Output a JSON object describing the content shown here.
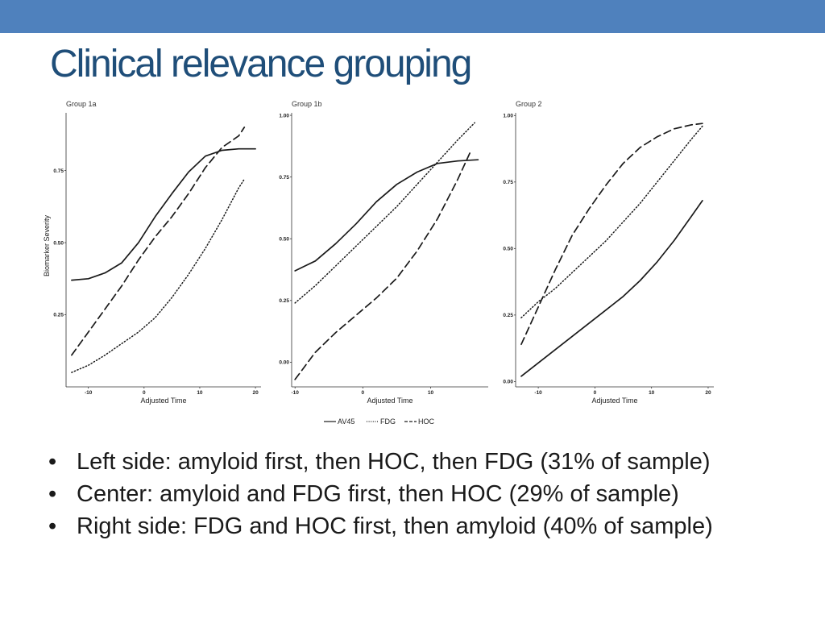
{
  "slide": {
    "title": "Clinical relevance grouping",
    "accent_color": "#4f81bd",
    "title_color": "#1f4e79"
  },
  "legend": [
    {
      "label": "AV45",
      "style": "solid"
    },
    {
      "label": "FDG",
      "style": "dotted"
    },
    {
      "label": "HOC",
      "style": "dashed"
    }
  ],
  "chart_data": [
    {
      "type": "line",
      "title": "Group 1a",
      "xlabel": "Adjusted Time",
      "ylabel": "Biomarker Severity",
      "xlim": [
        -14,
        21
      ],
      "ylim": [
        0,
        0.95
      ],
      "xticks": [
        -10,
        0,
        10,
        20
      ],
      "yticks": [
        0.25,
        0.5,
        0.75
      ],
      "grid": false,
      "series": [
        {
          "name": "AV45",
          "style": "solid",
          "x": [
            -13,
            -10,
            -7,
            -4,
            -1,
            2,
            5,
            8,
            11,
            14,
            17,
            20
          ],
          "y": [
            0.37,
            0.375,
            0.395,
            0.43,
            0.5,
            0.59,
            0.67,
            0.745,
            0.8,
            0.82,
            0.825,
            0.825
          ]
        },
        {
          "name": "FDG",
          "style": "dotted",
          "x": [
            -13,
            -10,
            -7,
            -4,
            -1,
            2,
            5,
            8,
            11,
            14,
            17,
            18
          ],
          "y": [
            0.05,
            0.075,
            0.11,
            0.15,
            0.19,
            0.24,
            0.31,
            0.39,
            0.48,
            0.58,
            0.69,
            0.72
          ]
        },
        {
          "name": "HOC",
          "style": "dashed",
          "x": [
            -13,
            -10,
            -7,
            -4,
            -1,
            2,
            5,
            8,
            11,
            14,
            17,
            18
          ],
          "y": [
            0.11,
            0.19,
            0.27,
            0.35,
            0.44,
            0.52,
            0.59,
            0.67,
            0.76,
            0.83,
            0.87,
            0.9
          ]
        }
      ]
    },
    {
      "type": "line",
      "title": "Group 1b",
      "xlabel": "Adjusted Time",
      "ylabel": "",
      "xlim": [
        -10.5,
        18.5
      ],
      "ylim": [
        -0.1,
        1.01
      ],
      "xticks": [
        -10,
        0,
        10
      ],
      "yticks": [
        0.0,
        0.25,
        0.5,
        0.75,
        1.0
      ],
      "grid": false,
      "series": [
        {
          "name": "AV45",
          "style": "solid",
          "x": [
            -10,
            -7,
            -4,
            -1,
            2,
            5,
            8,
            11,
            14,
            17
          ],
          "y": [
            0.37,
            0.41,
            0.48,
            0.56,
            0.65,
            0.72,
            0.77,
            0.805,
            0.815,
            0.82
          ]
        },
        {
          "name": "FDG",
          "style": "dotted",
          "x": [
            -10,
            -7,
            -4,
            -1,
            2,
            5,
            8,
            11,
            14,
            16.5
          ],
          "y": [
            0.24,
            0.31,
            0.39,
            0.47,
            0.55,
            0.63,
            0.72,
            0.81,
            0.9,
            0.97
          ]
        },
        {
          "name": "HOC",
          "style": "dashed",
          "x": [
            -10,
            -7,
            -4,
            -1,
            2,
            5,
            8,
            11,
            14,
            16
          ],
          "y": [
            -0.07,
            0.04,
            0.12,
            0.19,
            0.26,
            0.34,
            0.45,
            0.58,
            0.74,
            0.86
          ]
        }
      ]
    },
    {
      "type": "line",
      "title": "Group 2",
      "xlabel": "Adjusted Time",
      "ylabel": "",
      "xlim": [
        -14,
        21
      ],
      "ylim": [
        -0.02,
        1.01
      ],
      "xticks": [
        -10,
        0,
        10,
        20
      ],
      "yticks": [
        0.0,
        0.25,
        0.5,
        0.75,
        1.0
      ],
      "grid": false,
      "series": [
        {
          "name": "AV45",
          "style": "solid",
          "x": [
            -13,
            -10,
            -7,
            -4,
            -1,
            2,
            5,
            8,
            11,
            14,
            17,
            19
          ],
          "y": [
            0.02,
            0.07,
            0.12,
            0.17,
            0.22,
            0.27,
            0.32,
            0.38,
            0.45,
            0.53,
            0.62,
            0.68
          ]
        },
        {
          "name": "FDG",
          "style": "dotted",
          "x": [
            -13,
            -10,
            -7,
            -4,
            -1,
            2,
            5,
            8,
            11,
            14,
            17,
            19
          ],
          "y": [
            0.24,
            0.3,
            0.35,
            0.41,
            0.47,
            0.53,
            0.6,
            0.67,
            0.75,
            0.83,
            0.91,
            0.96
          ]
        },
        {
          "name": "HOC",
          "style": "dashed",
          "x": [
            -13,
            -10,
            -7,
            -4,
            -1,
            2,
            5,
            8,
            11,
            14,
            17,
            19
          ],
          "y": [
            0.14,
            0.28,
            0.42,
            0.55,
            0.65,
            0.74,
            0.82,
            0.88,
            0.92,
            0.95,
            0.965,
            0.97
          ]
        }
      ]
    }
  ],
  "bullets": [
    "Left side: amyloid first, then HOC, then FDG (31% of sample)",
    "Center: amyloid and FDG first, then HOC (29% of sample)",
    "Right side: FDG and HOC first, then amyloid (40% of sample)"
  ],
  "bullet_glyph": "•"
}
